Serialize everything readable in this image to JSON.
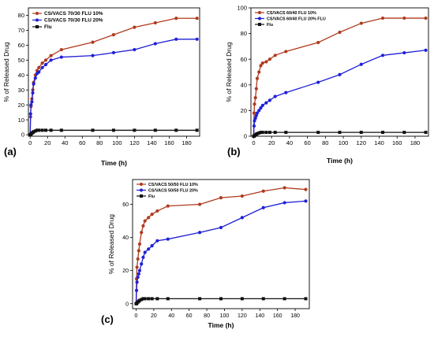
{
  "charts": [
    {
      "type": "line",
      "panel_label": "(a)",
      "xlabel": "Time (h)",
      "ylabel": "% of Released Drug",
      "xlim": [
        -2,
        195
      ],
      "ylim": [
        -1,
        85
      ],
      "xticks": [
        0,
        20,
        40,
        60,
        80,
        100,
        120,
        140,
        160,
        180
      ],
      "yticks": [
        0,
        10,
        20,
        30,
        40,
        50,
        60,
        70,
        80
      ],
      "legend_position": "top-left",
      "series": [
        {
          "name": "CS/VACS 70/30 FLU 10%",
          "color": "#b03a1e",
          "marker": "circle",
          "x": [
            0,
            0.5,
            1,
            2,
            3,
            4,
            6,
            8,
            10,
            14,
            18,
            24,
            36,
            72,
            96,
            120,
            144,
            168,
            192
          ],
          "y": [
            0,
            12,
            19,
            24,
            30,
            35,
            40,
            43,
            45,
            48,
            50,
            53,
            57,
            62,
            67,
            72,
            75,
            78,
            78
          ]
        },
        {
          "name": "CS/VACS 70/30 FLU 20%",
          "color": "#1f1fd6",
          "marker": "circle",
          "x": [
            0,
            0.5,
            1,
            2,
            3,
            4,
            6,
            8,
            10,
            14,
            18,
            24,
            36,
            72,
            96,
            120,
            144,
            168,
            192
          ],
          "y": [
            0,
            14,
            20,
            22,
            28,
            34,
            38,
            41,
            42,
            45,
            47,
            50,
            52,
            53,
            55,
            57,
            61,
            64,
            64
          ]
        },
        {
          "name": "Flu",
          "color": "#111111",
          "marker": "square",
          "x": [
            0,
            0.5,
            1,
            2,
            3,
            4,
            6,
            8,
            10,
            14,
            18,
            24,
            36,
            72,
            96,
            120,
            144,
            168,
            192
          ],
          "y": [
            0,
            0,
            0.5,
            1,
            1.5,
            2,
            2.5,
            3,
            3,
            3,
            3,
            3,
            3,
            3,
            3,
            3,
            3,
            3,
            3
          ]
        }
      ]
    },
    {
      "type": "line",
      "panel_label": "(b)",
      "xlabel": "Time (h)",
      "ylabel": "% of Released Drug",
      "xlim": [
        -3,
        195
      ],
      "ylim": [
        0,
        100
      ],
      "xticks": [
        0,
        20,
        40,
        60,
        80,
        100,
        120,
        140,
        160,
        180
      ],
      "yticks": [
        0,
        20,
        40,
        60,
        80,
        100
      ],
      "legend_position": "top-left",
      "series": [
        {
          "name": "CS/VACS 60/40 FLU 10%",
          "color": "#b03a1e",
          "marker": "circle",
          "x": [
            0,
            0.5,
            1,
            2,
            3,
            4,
            6,
            8,
            10,
            14,
            18,
            24,
            36,
            72,
            96,
            120,
            144,
            168,
            192
          ],
          "y": [
            0,
            18,
            25,
            30,
            37,
            45,
            50,
            55,
            57,
            58,
            60,
            63,
            66,
            73,
            81,
            88,
            92,
            92,
            92
          ]
        },
        {
          "name": "CS/VACS 60/40 FLU 20% FLU",
          "color": "#1f1fd6",
          "marker": "circle",
          "x": [
            0,
            0.5,
            1,
            2,
            3,
            4,
            6,
            8,
            10,
            14,
            18,
            24,
            36,
            72,
            96,
            120,
            144,
            168,
            192
          ],
          "y": [
            0,
            8,
            12,
            14,
            16,
            18,
            20,
            22,
            24,
            26,
            28,
            31,
            34,
            42,
            48,
            56,
            63,
            65,
            67
          ]
        },
        {
          "name": "Flu",
          "color": "#111111",
          "marker": "square",
          "x": [
            0,
            0.5,
            1,
            2,
            3,
            4,
            6,
            8,
            10,
            14,
            18,
            24,
            36,
            72,
            96,
            120,
            144,
            168,
            192
          ],
          "y": [
            0,
            0,
            0.5,
            1,
            1.5,
            2,
            2.5,
            3,
            3,
            3,
            3,
            3,
            3,
            3,
            3,
            3,
            3,
            3,
            3
          ]
        }
      ]
    },
    {
      "type": "line",
      "panel_label": "(c)",
      "xlabel": "Time (h)",
      "ylabel": "% of Released Drug",
      "xlim": [
        -4,
        196
      ],
      "ylim": [
        -3,
        75
      ],
      "xticks": [
        0,
        20,
        40,
        60,
        80,
        100,
        120,
        140,
        160,
        180
      ],
      "yticks": [
        0,
        20,
        40,
        60
      ],
      "legend_position": "top-left",
      "series": [
        {
          "name": "CS/VACS 50/50 FLU 10%",
          "color": "#b03a1e",
          "marker": "circle",
          "x": [
            0,
            0.5,
            1,
            2,
            3,
            4,
            6,
            8,
            10,
            14,
            18,
            24,
            36,
            72,
            96,
            120,
            144,
            168,
            192
          ],
          "y": [
            0,
            15,
            22,
            27,
            32,
            36,
            43,
            47,
            50,
            52,
            54,
            56,
            59,
            60,
            64,
            65,
            68,
            70,
            69
          ]
        },
        {
          "name": "CS/VACS 50/50 FLU 20%",
          "color": "#1f1fd6",
          "marker": "circle",
          "x": [
            0,
            0.5,
            1,
            2,
            3,
            4,
            6,
            8,
            10,
            14,
            18,
            24,
            36,
            72,
            96,
            120,
            144,
            168,
            192
          ],
          "y": [
            0,
            8,
            13,
            16,
            18,
            20,
            24,
            28,
            31,
            33,
            35,
            38,
            39,
            43,
            46,
            52,
            58,
            61,
            62
          ]
        },
        {
          "name": "Flu",
          "color": "#111111",
          "marker": "square",
          "x": [
            0,
            0.5,
            1,
            2,
            3,
            4,
            6,
            8,
            10,
            14,
            18,
            24,
            36,
            72,
            96,
            120,
            144,
            168,
            192
          ],
          "y": [
            0,
            0,
            0.5,
            1,
            1.5,
            2,
            2.5,
            3,
            3,
            3,
            3,
            3,
            3,
            3,
            3,
            3,
            3,
            3,
            3
          ]
        }
      ]
    }
  ]
}
